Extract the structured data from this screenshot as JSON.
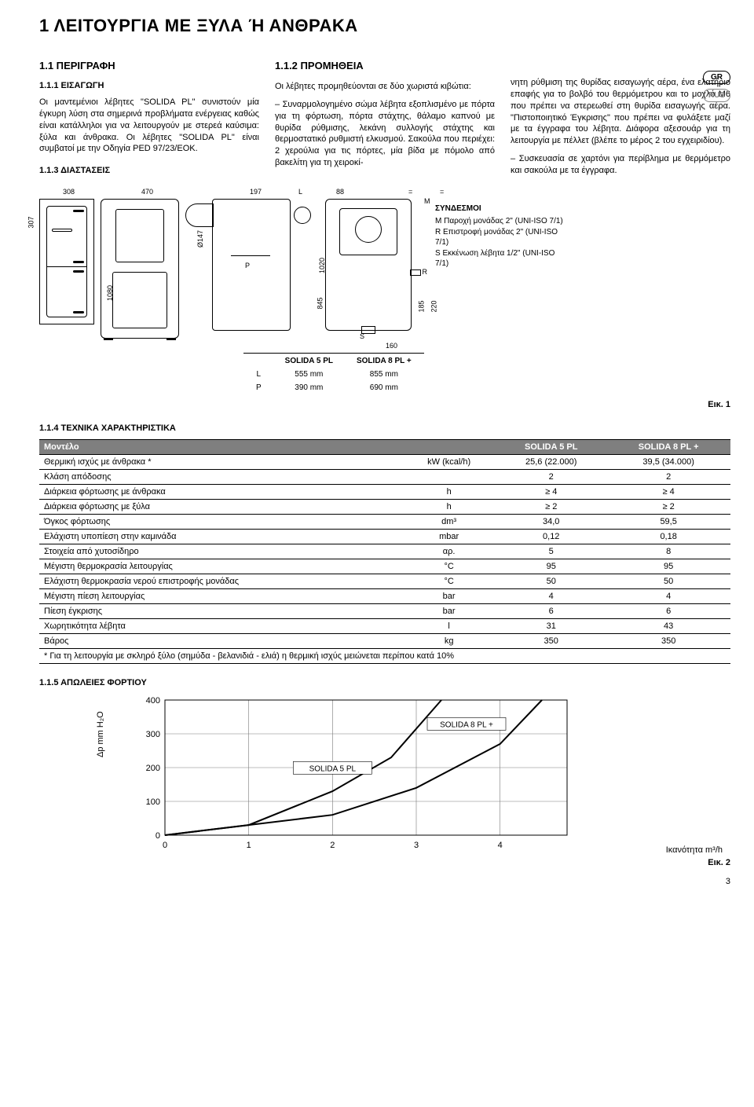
{
  "title": "1   ΛΕΙΤΟΥΡΓΙΑ ΜΕ ΞΥΛΑ Ή ΑΝΘΡΑΚΑ",
  "lang_badges": [
    "GR",
    "RUS"
  ],
  "col1": {
    "h": "1.1   ΠΕΡΙΓΡΑΦΗ",
    "sub": "1.1.1  ΕΙΣΑΓΩΓΗ",
    "p1": "Οι μαντεμένιοι λέβητες \"SOLIDA PL\" συνιστούν μία έγκυρη λύση στα σημερινά προβλήματα ενέργειας καθώς είναι κατάλληλοι για να λειτουργούν με στερεά καύσιμα: ξύλα και άνθρακα. Οι λέβητες \"SOLIDA PL\" είναι συμβατοί με την Οδηγία PED 97/23/EOK.",
    "sub2": "1.1.3  ΔΙΑΣΤΑΣΕΙΣ"
  },
  "col2": {
    "h": "1.1.2   ΠΡΟΜΗΘΕΙΑ",
    "p1": "Οι λέβητες προμηθεύονται σε δύο χωριστά κιβώτια:",
    "p2": "– Συναρμολογημένο σώμα λέβητα εξοπλισμένο με πόρτα για τη φόρτωση, πόρτα στάχτης, θάλαμο καπνού με θυρίδα ρύθμισης, λεκάνη συλλογής στάχτης και θερμοστατικό ρυθμιστή ελκυσμού. Σακούλα που περιέχει: 2 χερούλια για τις πόρτες, μία βίδα με πόμολο από βακελίτη για τη χειροκί-"
  },
  "col3": {
    "p1": "νητη ρύθμιση της θυρίδας εισαγωγής αέρα, ένα ελατήριο επαφής για το βολβό του θερμόμετρου και το μοχλό M6 που πρέπει να στερεωθεί στη θυρίδα εισαγωγής αέρα. \"Πιστοποιητικό Έγκρισης\" που πρέπει να φυλάξετε μαζί με τα έγγραφα του λέβητα. Διάφορα αξεσουάρ για τη λειτουργία με πέλλετ (βλέπε το μέρος 2 του εγχειριδίου).",
    "p2": "– Συσκευασία σε χαρτόνι για περίβλημα με θερμόμετρο και σακούλα με τα έγγραφα."
  },
  "diagram": {
    "top_dims": [
      "308",
      "470",
      "197",
      "L",
      "88",
      "=",
      "="
    ],
    "side_dims": {
      "h1": "307",
      "h2": "1080",
      "d": "Ø147",
      "right_h": "1020",
      "gap": "845",
      "low1": "185",
      "low2": "220",
      "mid": "160",
      "M": "M",
      "R": "R",
      "S": "S",
      "P": "P"
    },
    "connections": {
      "hd": "ΣΥΝΔΕΣΜΟΙ",
      "m": "M  Παροχή μονάδας 2\" (UNI-ISO 7/1)",
      "r": "R  Επιστροφή μονάδας 2\" (UNI-ISO 7/1)",
      "s": "S  Εκκένωση λέβητα 1/2\" (UNI-ISO 7/1)"
    },
    "lp_table": {
      "head": [
        "",
        "SOLIDA 5 PL",
        "SOLIDA 8 PL +"
      ],
      "rows": [
        [
          "L",
          "555 mm",
          "855 mm"
        ],
        [
          "P",
          "390 mm",
          "690 mm"
        ]
      ]
    },
    "fig": "Εικ. 1"
  },
  "specs": {
    "heading": "1.1.4   ΤΕΧΝΙΚΑ ΧΑΡΑΚΤΗΡΙΣΤΙΚΑ",
    "head": [
      "Μοντέλο",
      "SOLIDA 5 PL",
      "SOLIDA 8 PL +"
    ],
    "rows": [
      [
        "Θερμική ισχύς με άνθρακα *",
        "kW (kcal/h)",
        "25,6 (22.000)",
        "39,5 (34.000)"
      ],
      [
        "Κλάση απόδοσης",
        "",
        "2",
        "2"
      ],
      [
        "Διάρκεια φόρτωσης με άνθρακα",
        "h",
        "≥ 4",
        "≥ 4"
      ],
      [
        "Διάρκεια φόρτωσης με ξύλα",
        "h",
        "≥ 2",
        "≥ 2"
      ],
      [
        "Όγκος φόρτωσης",
        "dm³",
        "34,0",
        "59,5"
      ],
      [
        "Ελάχιστη υποπίεση στην καμινάδα",
        "mbar",
        "0,12",
        "0,18"
      ],
      [
        "Στοιχεία από χυτοσίδηρο",
        "αρ.",
        "5",
        "8"
      ],
      [
        "Μέγιστη θερμοκρασία λειτουργίας",
        "°C",
        "95",
        "95"
      ],
      [
        "Ελάχιστη θερμοκρασία νερού επιστροφής μονάδας",
        "°C",
        "50",
        "50"
      ],
      [
        "Μέγιστη πίεση λειτουργίας",
        "bar",
        "4",
        "4"
      ],
      [
        "Πίεση έγκρισης",
        "bar",
        "6",
        "6"
      ],
      [
        "Χωρητικότητα λέβητα",
        "l",
        "31",
        "43"
      ],
      [
        "Βάρος",
        "kg",
        "350",
        "350"
      ]
    ],
    "footnote": "* Για τη λειτουργία με σκληρό ξύλο (σημύδα - βελανιδιά - ελιά) η θερμική ισχύς μειώνεται περίπου κατά 10%"
  },
  "loss": {
    "heading": "1.1.5   ΑΠΩΛΕΙΕΣ ΦΟΡΤΙΟΥ",
    "ylabel": "Δp mm H₂O",
    "xlabel": "Ικανότητα m³/h",
    "y_ticks": [
      0,
      100,
      200,
      300,
      400
    ],
    "x_ticks": [
      0,
      1,
      2,
      3,
      4
    ],
    "grid_color": "#7a7a7a",
    "bg": "#ffffff",
    "series": [
      {
        "label": "SOLIDA 5 PL",
        "points": [
          [
            0,
            0
          ],
          [
            1,
            30
          ],
          [
            2,
            130
          ],
          [
            2.7,
            230
          ],
          [
            3.3,
            400
          ]
        ]
      },
      {
        "label": "SOLIDA 8 PL +",
        "points": [
          [
            0,
            0
          ],
          [
            2,
            60
          ],
          [
            3,
            140
          ],
          [
            4,
            270
          ],
          [
            4.5,
            400
          ]
        ]
      }
    ],
    "xlim": [
      0,
      4.8
    ],
    "ylim": [
      0,
      400
    ],
    "line_color": "#000000",
    "line_width": 2,
    "fig": "Εικ. 2"
  },
  "page_number": "3"
}
